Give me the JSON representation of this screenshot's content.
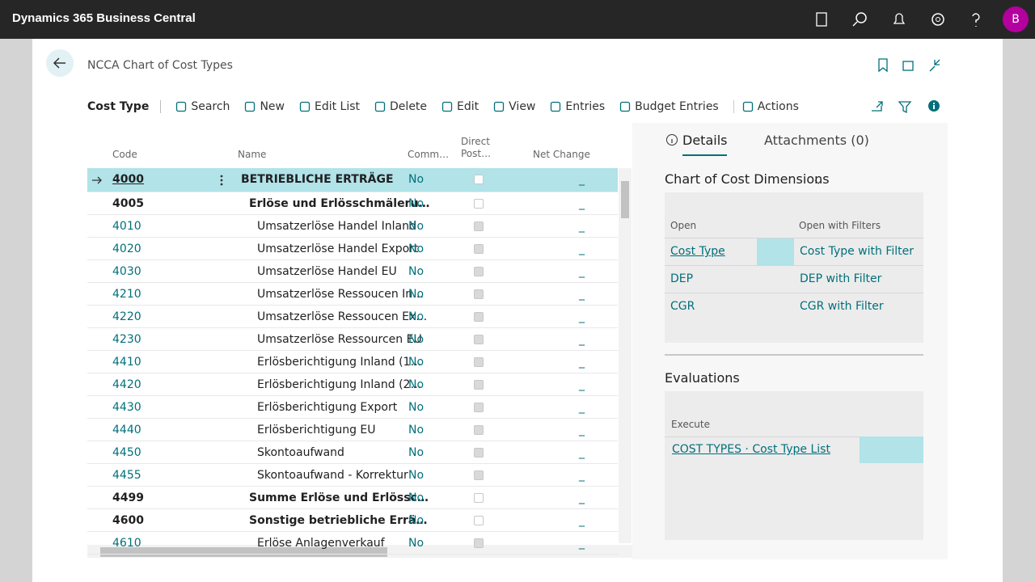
{
  "app": {
    "title": "Dynamics 365 Business Central",
    "avatar": "B"
  },
  "page": {
    "title": "NCCA Chart of Cost Types"
  },
  "toolbar": {
    "caption": "Cost Type",
    "actions": [
      "Search",
      "New",
      "Edit List",
      "Delete",
      "Edit",
      "View",
      "Entries",
      "Budget Entries",
      "Actions"
    ]
  },
  "table": {
    "columns": [
      "Code",
      "Name",
      "Comm…",
      "Direct Post…",
      "Net Change"
    ],
    "rows": [
      {
        "code": "4000",
        "name": "BETRIEBLICHE ERTRÄGE",
        "comm": "No",
        "direct_posting": false,
        "net_change": "_",
        "bold": true,
        "level": 0,
        "selected": true
      },
      {
        "code": "4005",
        "name": "Erlöse und Erlösschmäleru…",
        "comm": "No",
        "direct_posting": false,
        "net_change": "_",
        "bold": true,
        "level": 1
      },
      {
        "code": "4010",
        "name": "Umsatzerlöse Handel Inland",
        "comm": "No",
        "direct_posting": true,
        "net_change": "_",
        "level": 2
      },
      {
        "code": "4020",
        "name": "Umsatzerlöse Handel Export",
        "comm": "No",
        "direct_posting": true,
        "net_change": "_",
        "level": 2
      },
      {
        "code": "4030",
        "name": "Umsatzerlöse Handel EU",
        "comm": "No",
        "direct_posting": true,
        "net_change": "_",
        "level": 2
      },
      {
        "code": "4210",
        "name": "Umsatzerlöse Ressoucen In…",
        "comm": "No",
        "direct_posting": true,
        "net_change": "_",
        "level": 2
      },
      {
        "code": "4220",
        "name": "Umsatzerlöse Ressoucen Ex…",
        "comm": "No",
        "direct_posting": true,
        "net_change": "_",
        "level": 2
      },
      {
        "code": "4230",
        "name": "Umsatzerlöse Ressourcen EU",
        "comm": "No",
        "direct_posting": true,
        "net_change": "_",
        "level": 2
      },
      {
        "code": "4410",
        "name": "Erlösberichtigung Inland (1…",
        "comm": "No",
        "direct_posting": true,
        "net_change": "_",
        "level": 2
      },
      {
        "code": "4420",
        "name": "Erlösberichtigung Inland (2…",
        "comm": "No",
        "direct_posting": true,
        "net_change": "_",
        "level": 2
      },
      {
        "code": "4430",
        "name": "Erlösberichtigung Export",
        "comm": "No",
        "direct_posting": true,
        "net_change": "_",
        "level": 2
      },
      {
        "code": "4440",
        "name": "Erlösberichtigung EU",
        "comm": "No",
        "direct_posting": true,
        "net_change": "_",
        "level": 2
      },
      {
        "code": "4450",
        "name": "Skontoaufwand",
        "comm": "No",
        "direct_posting": true,
        "net_change": "_",
        "level": 2
      },
      {
        "code": "4455",
        "name": "Skontoaufwand - Korrektur",
        "comm": "No",
        "direct_posting": true,
        "net_change": "_",
        "level": 2
      },
      {
        "code": "4499",
        "name": "Summe Erlöse und Erlössc…",
        "comm": "No",
        "direct_posting": false,
        "net_change": "_",
        "bold": true,
        "level": 1
      },
      {
        "code": "4600",
        "name": "Sonstige betriebliche Errä…",
        "comm": "No",
        "direct_posting": false,
        "net_change": "_",
        "bold": true,
        "level": 1
      },
      {
        "code": "4610",
        "name": "Erlöse Anlagenverkauf",
        "comm": "No",
        "direct_posting": true,
        "net_change": "_",
        "level": 2
      }
    ]
  },
  "factbox": {
    "tabs": [
      "Details",
      "Attachments (0)"
    ],
    "dimensions": {
      "title": "Chart of Cost Dimensions",
      "columns": [
        "Open",
        "Open with Filters"
      ],
      "rows": [
        [
          "Cost Type",
          "Cost Type with Filter"
        ],
        [
          "DEP",
          "DEP with Filter"
        ],
        [
          "CGR",
          "CGR with Filter"
        ]
      ]
    },
    "evaluations": {
      "title": "Evaluations",
      "column": "Execute",
      "rows": [
        "COST TYPES · Cost Type List"
      ]
    }
  }
}
